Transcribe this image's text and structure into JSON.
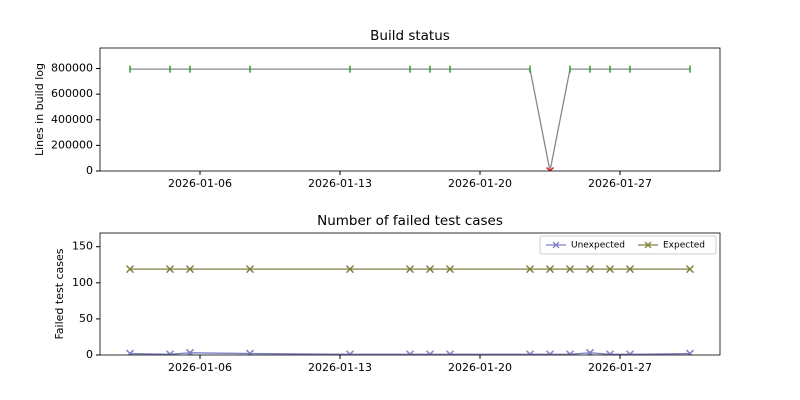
{
  "chart_data": [
    {
      "type": "line",
      "title": "Build status",
      "ylabel": "Lines in build log",
      "x": [
        "2026-01-02",
        "2026-01-04",
        "2026-01-05",
        "2026-01-08",
        "2026-01-13",
        "2026-01-16",
        "2026-01-17",
        "2026-01-18",
        "2026-01-22",
        "2026-01-23",
        "2026-01-24",
        "2026-01-25",
        "2026-01-26",
        "2026-01-27",
        "2026-01-30"
      ],
      "series": [
        {
          "color": "#888888",
          "values": [
            795000,
            795000,
            795000,
            795000,
            795000,
            795000,
            795000,
            795000,
            795000,
            0,
            795000,
            795000,
            795000,
            795000,
            795000
          ],
          "point_colors": [
            "#2ca02c",
            "#2ca02c",
            "#2ca02c",
            "#2ca02c",
            "#2ca02c",
            "#2ca02c",
            "#2ca02c",
            "#2ca02c",
            "#2ca02c",
            "#d62728",
            "#2ca02c",
            "#2ca02c",
            "#2ca02c",
            "#2ca02c",
            "#2ca02c"
          ],
          "point_markers": [
            "|",
            "|",
            "|",
            "|",
            "|",
            "|",
            "|",
            "|",
            "|",
            "x",
            "|",
            "|",
            "|",
            "|",
            "|"
          ]
        }
      ],
      "xlim": [
        "2026-01-01",
        "2026-02-01"
      ],
      "xticks": [
        "2026-01-06",
        "2026-01-13",
        "2026-01-20",
        "2026-01-27"
      ],
      "ylim": [
        0,
        960000
      ],
      "yticks": [
        0,
        200000,
        400000,
        600000,
        800000
      ]
    },
    {
      "type": "line",
      "title": "Number of failed test cases",
      "ylabel": "Failed test cases",
      "x": [
        "2026-01-02",
        "2026-01-04",
        "2026-01-05",
        "2026-01-08",
        "2026-01-13",
        "2026-01-16",
        "2026-01-17",
        "2026-01-18",
        "2026-01-22",
        "2026-01-23",
        "2026-01-24",
        "2026-01-25",
        "2026-01-26",
        "2026-01-27",
        "2026-01-30"
      ],
      "series": [
        {
          "name": "Unexpected",
          "color": "#7f7fc4",
          "values": [
            2,
            1,
            3,
            2,
            1,
            1,
            1,
            1,
            1,
            1,
            1,
            3,
            1,
            1,
            2
          ]
        },
        {
          "name": "Expected",
          "color": "#808040",
          "values": [
            119,
            119,
            119,
            119,
            119,
            119,
            119,
            119,
            119,
            119,
            119,
            119,
            119,
            119,
            119
          ]
        }
      ],
      "xlim": [
        "2026-01-01",
        "2026-02-01"
      ],
      "xticks": [
        "2026-01-06",
        "2026-01-13",
        "2026-01-20",
        "2026-01-27"
      ],
      "ylim": [
        0,
        169
      ],
      "yticks": [
        0,
        50,
        100,
        150
      ],
      "legend": "upper right"
    }
  ]
}
